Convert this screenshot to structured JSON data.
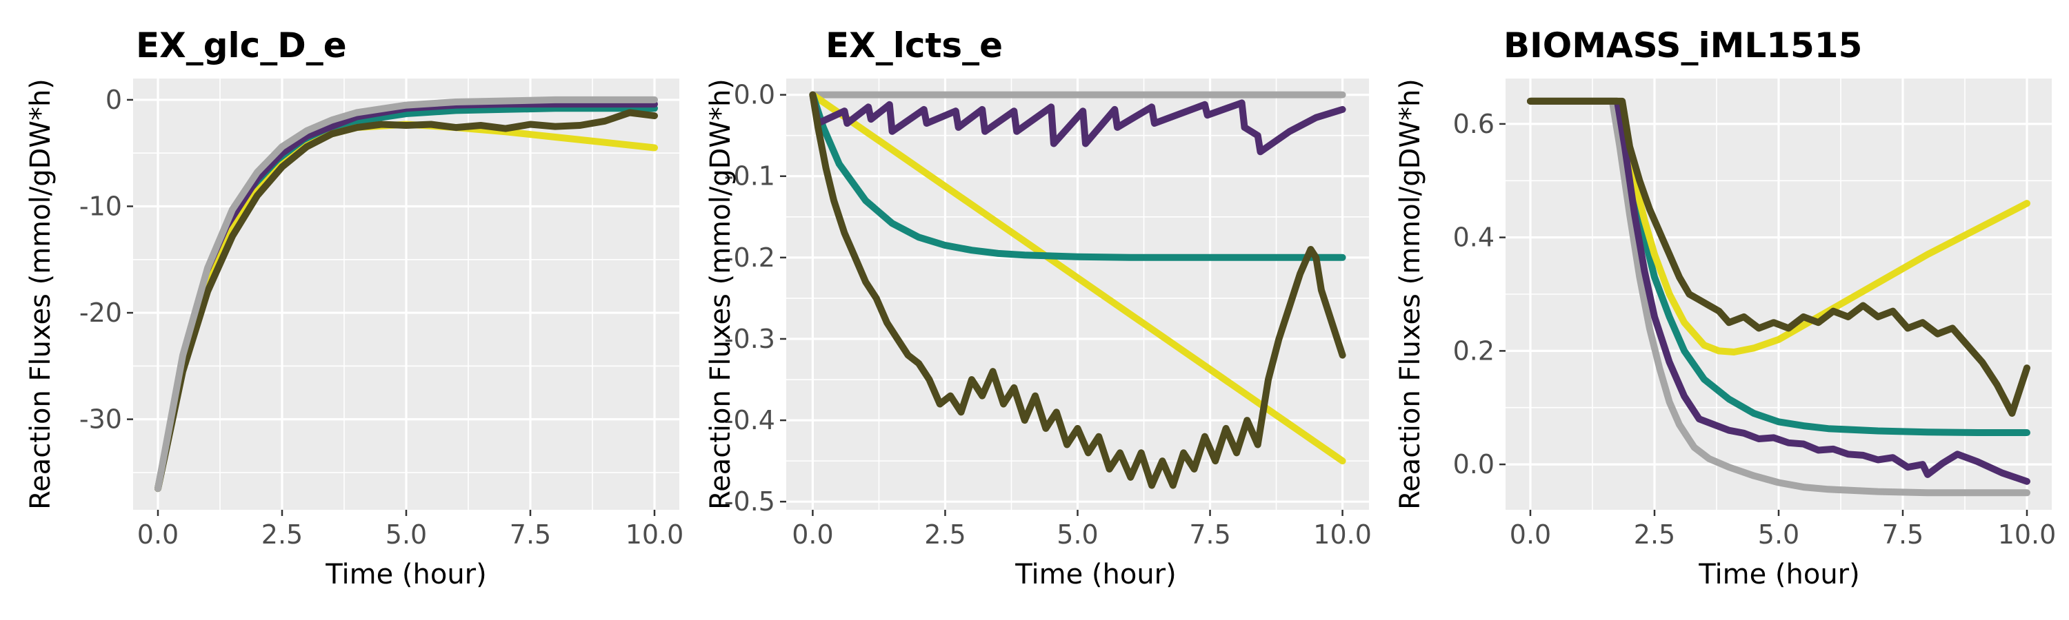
{
  "colors": {
    "purple": "#4f2d6e",
    "teal": "#15877a",
    "yellow": "#e6dc1e",
    "olive": "#4f4b1e",
    "gray": "#a6a6a6",
    "panel_bg": "#ebebeb"
  },
  "chart_data": [
    {
      "type": "line",
      "title": "EX_glc_D_e",
      "xlabel": "Time (hour)",
      "ylabel": "Reaction Fluxes (mmol/gDW*h)",
      "xlim": [
        -0.5,
        10.5
      ],
      "ylim": [
        -38.5,
        2
      ],
      "xticks": [
        0,
        2.5,
        5,
        7.5,
        10
      ],
      "xtick_labels": [
        "0.0",
        "2.5",
        "5.0",
        "7.5",
        "10.0"
      ],
      "yticks": [
        0,
        -10,
        -20,
        -30
      ],
      "ytick_labels": [
        "0",
        "-10",
        "-20",
        "-30"
      ],
      "grid": true,
      "series": [
        {
          "color": "#15877a",
          "x": [
            0,
            0.5,
            1,
            1.5,
            2,
            2.5,
            3,
            4,
            5,
            6,
            7,
            8,
            9,
            10
          ],
          "y": [
            -36.5,
            -25.0,
            -17.0,
            -11.5,
            -7.8,
            -5.3,
            -3.7,
            -2.0,
            -1.3,
            -1.0,
            -0.9,
            -0.8,
            -0.8,
            -0.8
          ]
        },
        {
          "color": "#4f2d6e",
          "x": [
            0,
            0.5,
            1,
            1.5,
            2,
            2.5,
            3,
            4,
            5,
            6,
            7,
            8,
            9,
            10
          ],
          "y": [
            -36.5,
            -24.7,
            -16.6,
            -11.1,
            -7.4,
            -5.0,
            -3.4,
            -1.6,
            -0.8,
            -0.5,
            -0.4,
            -0.4,
            -0.4,
            -0.4
          ]
        },
        {
          "color": "#e6dc1e",
          "x": [
            0,
            0.5,
            1,
            1.5,
            2,
            2.5,
            3,
            3.5,
            4,
            5,
            6,
            7,
            8,
            9,
            10
          ],
          "y": [
            -36.5,
            -25.2,
            -17.5,
            -12.2,
            -8.6,
            -6.1,
            -4.3,
            -3.2,
            -2.6,
            -2.3,
            -2.6,
            -3.0,
            -3.5,
            -4.0,
            -4.5
          ]
        },
        {
          "color": "#4f4b1e",
          "x": [
            0,
            0.5,
            1,
            1.5,
            2,
            2.5,
            3,
            3.5,
            4,
            4.5,
            5,
            5.5,
            6,
            6.5,
            7,
            7.5,
            8,
            8.5,
            9,
            9.5,
            10
          ],
          "y": [
            -36.5,
            -25.5,
            -18.0,
            -12.8,
            -9.0,
            -6.3,
            -4.4,
            -3.2,
            -2.6,
            -2.3,
            -2.4,
            -2.3,
            -2.6,
            -2.4,
            -2.7,
            -2.3,
            -2.5,
            -2.4,
            -2.0,
            -1.2,
            -1.5
          ]
        },
        {
          "color": "#a6a6a6",
          "x": [
            0,
            0.5,
            1,
            1.5,
            2,
            2.5,
            3,
            3.5,
            4,
            5,
            6,
            7,
            8,
            9,
            10
          ],
          "y": [
            -36.5,
            -24.0,
            -15.8,
            -10.3,
            -6.8,
            -4.4,
            -2.9,
            -1.9,
            -1.2,
            -0.5,
            -0.2,
            -0.1,
            0.0,
            0.0,
            0.0
          ]
        }
      ]
    },
    {
      "type": "line",
      "title": "EX_lcts_e",
      "xlabel": "Time (hour)",
      "ylabel": "Reaction Fluxes (mmol/gDW*h)",
      "xlim": [
        -0.5,
        10.5
      ],
      "ylim": [
        -0.51,
        0.02
      ],
      "xticks": [
        0,
        2.5,
        5,
        7.5,
        10
      ],
      "xtick_labels": [
        "0.0",
        "2.5",
        "5.0",
        "7.5",
        "10.0"
      ],
      "yticks": [
        0,
        -0.1,
        -0.2,
        -0.3,
        -0.4,
        -0.5
      ],
      "ytick_labels": [
        "0.0",
        "-0.1",
        "-0.2",
        "-0.3",
        "-0.4",
        "-0.5"
      ],
      "grid": true,
      "series": [
        {
          "color": "#a6a6a6",
          "x": [
            0,
            10
          ],
          "y": [
            0.0,
            0.0
          ]
        },
        {
          "color": "#e6dc1e",
          "x": [
            0,
            10
          ],
          "y": [
            0.0,
            -0.45
          ]
        },
        {
          "color": "#15877a",
          "x": [
            0,
            0.2,
            0.5,
            1,
            1.5,
            2,
            2.5,
            3,
            3.5,
            4,
            5,
            6,
            7,
            8,
            9,
            10
          ],
          "y": [
            0.0,
            -0.04,
            -0.085,
            -0.13,
            -0.158,
            -0.175,
            -0.185,
            -0.191,
            -0.195,
            -0.197,
            -0.199,
            -0.2,
            -0.2,
            -0.2,
            -0.2,
            -0.2
          ]
        },
        {
          "color": "#4f2d6e",
          "x": [
            0,
            0.1,
            0.6,
            0.65,
            1.05,
            1.1,
            1.45,
            1.5,
            2.1,
            2.15,
            2.7,
            2.75,
            3.2,
            3.25,
            3.8,
            3.85,
            4.5,
            4.55,
            5.1,
            5.15,
            5.7,
            5.75,
            6.4,
            6.45,
            7.4,
            7.45,
            8.1,
            8.15,
            8.4,
            8.45,
            9.0,
            9.5,
            10.0
          ],
          "y": [
            0.0,
            -0.035,
            -0.02,
            -0.035,
            -0.015,
            -0.03,
            -0.012,
            -0.045,
            -0.018,
            -0.035,
            -0.02,
            -0.04,
            -0.018,
            -0.045,
            -0.02,
            -0.045,
            -0.015,
            -0.06,
            -0.02,
            -0.06,
            -0.018,
            -0.04,
            -0.015,
            -0.035,
            -0.012,
            -0.025,
            -0.01,
            -0.04,
            -0.05,
            -0.07,
            -0.045,
            -0.028,
            -0.018
          ]
        },
        {
          "color": "#4f4b1e",
          "x": [
            0,
            0.1,
            0.25,
            0.4,
            0.6,
            0.8,
            1.0,
            1.2,
            1.4,
            1.6,
            1.8,
            2.0,
            2.2,
            2.4,
            2.6,
            2.8,
            3.0,
            3.2,
            3.4,
            3.6,
            3.8,
            4.0,
            4.2,
            4.4,
            4.6,
            4.8,
            5.0,
            5.2,
            5.4,
            5.6,
            5.8,
            6.0,
            6.2,
            6.4,
            6.6,
            6.8,
            7.0,
            7.2,
            7.4,
            7.6,
            7.8,
            8.0,
            8.2,
            8.4,
            8.6,
            8.8,
            9.0,
            9.2,
            9.4,
            9.5,
            9.6,
            9.8,
            10.0
          ],
          "y": [
            0.0,
            -0.04,
            -0.09,
            -0.13,
            -0.17,
            -0.2,
            -0.23,
            -0.25,
            -0.28,
            -0.3,
            -0.32,
            -0.33,
            -0.35,
            -0.38,
            -0.37,
            -0.39,
            -0.35,
            -0.37,
            -0.34,
            -0.38,
            -0.36,
            -0.4,
            -0.37,
            -0.41,
            -0.39,
            -0.43,
            -0.41,
            -0.44,
            -0.42,
            -0.46,
            -0.44,
            -0.47,
            -0.44,
            -0.48,
            -0.45,
            -0.48,
            -0.44,
            -0.46,
            -0.42,
            -0.45,
            -0.41,
            -0.44,
            -0.4,
            -0.43,
            -0.35,
            -0.3,
            -0.26,
            -0.22,
            -0.19,
            -0.2,
            -0.24,
            -0.28,
            -0.32
          ]
        }
      ]
    },
    {
      "type": "line",
      "title": "BIOMASS_iML1515",
      "xlabel": "Time (hour)",
      "ylabel": "Reaction Fluxes (mmol/gDW*h)",
      "xlim": [
        -0.5,
        10.5
      ],
      "ylim": [
        -0.08,
        0.68
      ],
      "xticks": [
        0,
        2.5,
        5,
        7.5,
        10
      ],
      "xtick_labels": [
        "0.0",
        "2.5",
        "5.0",
        "7.5",
        "10.0"
      ],
      "yticks": [
        0.6,
        0.4,
        0.2,
        0.0
      ],
      "ytick_labels": [
        "0.6",
        "0.4",
        "0.2",
        "0.0"
      ],
      "grid": true,
      "series": [
        {
          "color": "#a6a6a6",
          "x": [
            0,
            1.65,
            1.8,
            2.0,
            2.2,
            2.4,
            2.6,
            2.8,
            3.0,
            3.3,
            3.6,
            4.0,
            4.5,
            5.0,
            5.5,
            6,
            7,
            8,
            9,
            10
          ],
          "y": [
            0.64,
            0.64,
            0.56,
            0.44,
            0.33,
            0.24,
            0.17,
            0.11,
            0.07,
            0.03,
            0.01,
            -0.005,
            -0.02,
            -0.032,
            -0.04,
            -0.044,
            -0.048,
            -0.05,
            -0.05,
            -0.05
          ]
        },
        {
          "color": "#15877a",
          "x": [
            0,
            1.75,
            1.9,
            2.1,
            2.3,
            2.5,
            2.8,
            3.1,
            3.5,
            4.0,
            4.5,
            5.0,
            5.5,
            6,
            7,
            8,
            9,
            10
          ],
          "y": [
            0.64,
            0.64,
            0.57,
            0.48,
            0.4,
            0.33,
            0.26,
            0.2,
            0.15,
            0.115,
            0.09,
            0.075,
            0.068,
            0.063,
            0.059,
            0.057,
            0.056,
            0.056
          ]
        },
        {
          "color": "#e6dc1e",
          "x": [
            0,
            1.75,
            1.9,
            2.1,
            2.3,
            2.5,
            2.8,
            3.1,
            3.5,
            3.8,
            4.1,
            4.5,
            5.0,
            6.0,
            7.0,
            8.0,
            9.0,
            10.0
          ],
          "y": [
            0.64,
            0.64,
            0.58,
            0.5,
            0.43,
            0.37,
            0.3,
            0.25,
            0.21,
            0.2,
            0.198,
            0.205,
            0.22,
            0.27,
            0.32,
            0.37,
            0.415,
            0.46
          ]
        },
        {
          "color": "#4f2d6e",
          "x": [
            0,
            1.75,
            1.9,
            2.1,
            2.3,
            2.5,
            2.8,
            3.1,
            3.4,
            3.7,
            4.0,
            4.3,
            4.6,
            4.9,
            5.2,
            5.5,
            5.8,
            6.1,
            6.4,
            6.7,
            7.0,
            7.3,
            7.6,
            7.9,
            8.0,
            8.3,
            8.6,
            9.0,
            9.5,
            10.0
          ],
          "y": [
            0.64,
            0.64,
            0.56,
            0.44,
            0.34,
            0.26,
            0.18,
            0.12,
            0.08,
            0.07,
            0.06,
            0.055,
            0.045,
            0.047,
            0.038,
            0.036,
            0.025,
            0.027,
            0.018,
            0.016,
            0.008,
            0.012,
            -0.005,
            0.0,
            -0.018,
            0.002,
            0.018,
            0.005,
            -0.015,
            -0.03
          ]
        },
        {
          "color": "#4f4b1e",
          "x": [
            0,
            1.85,
            2.0,
            2.2,
            2.4,
            2.6,
            2.8,
            3.0,
            3.2,
            3.4,
            3.6,
            3.8,
            4.0,
            4.3,
            4.6,
            4.9,
            5.2,
            5.5,
            5.8,
            6.1,
            6.4,
            6.7,
            7.0,
            7.3,
            7.6,
            7.9,
            8.2,
            8.5,
            8.8,
            9.1,
            9.4,
            9.7,
            10.0
          ],
          "y": [
            0.64,
            0.64,
            0.56,
            0.5,
            0.45,
            0.41,
            0.37,
            0.33,
            0.3,
            0.29,
            0.28,
            0.27,
            0.25,
            0.26,
            0.24,
            0.25,
            0.24,
            0.26,
            0.25,
            0.27,
            0.26,
            0.28,
            0.26,
            0.27,
            0.24,
            0.25,
            0.23,
            0.24,
            0.21,
            0.18,
            0.14,
            0.09,
            0.17
          ]
        }
      ]
    }
  ]
}
